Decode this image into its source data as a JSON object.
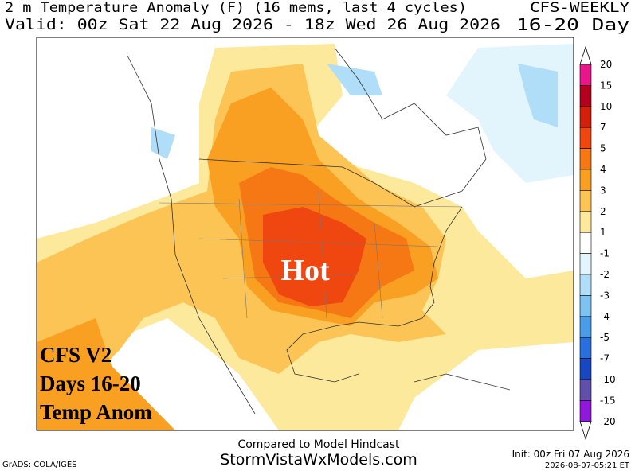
{
  "header": {
    "title": "2 m Temperature Anomaly (F) (16 mems, last 4 cycles)",
    "model": "CFS-WEEKLY",
    "valid": "Valid: 00z Sat 22 Aug 2026 - 18z Wed 26 Aug 2026",
    "range": "16-20 Day"
  },
  "map": {
    "annotation": "Hot",
    "overlay": [
      "CFS V2",
      "Days 16-20",
      "Temp Anom"
    ]
  },
  "colorbar": {
    "labels": [
      20,
      15,
      10,
      7,
      5,
      4,
      3,
      2,
      1,
      -1,
      -2,
      -3,
      -4,
      -5,
      -7,
      -10,
      -15,
      -20
    ],
    "colors": [
      "#e8168a",
      "#b4001e",
      "#d2200a",
      "#f0460f",
      "#f57814",
      "#f99f22",
      "#fcc455",
      "#fde99c",
      "#ffffff",
      "#e2f5fd",
      "#b0def8",
      "#7cc3f2",
      "#4a9ce8",
      "#2a6fde",
      "#1848c0",
      "#6050ac",
      "#9018d8"
    ]
  },
  "footer": {
    "note": "Compared to Model Hindcast",
    "site": "StormVistaWxModels.com",
    "credit": "GrADS: COLA/IGES",
    "init": "Init: 00z Fri 07 Aug 2026",
    "stamp": "2026-08-07-05:21 ET"
  }
}
